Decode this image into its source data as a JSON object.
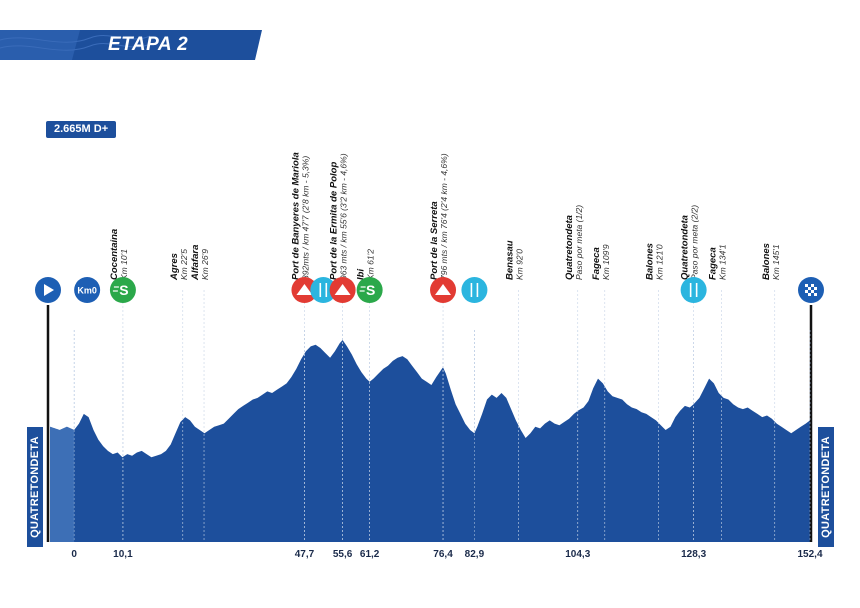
{
  "stage": {
    "title": "ETAPA 2",
    "elevation_gain": "2.665M D+"
  },
  "start_town": "QUATRETONDETA",
  "finish_town": "QUATRETONDETA",
  "colors": {
    "profile_fill": "#1d4f9c",
    "start_block": "#3d6fb6",
    "climb_red": "#e23b33",
    "sprint_green": "#2ba84a",
    "feed_cyan": "#2bb5df",
    "marker_blue": "#1d5fb4"
  },
  "chart_data": {
    "type": "area",
    "title": "ETAPA 2",
    "xlabel": "",
    "ylabel": "",
    "x_unit": "km",
    "xlim": [
      -5,
      152.4
    ],
    "grid": false,
    "ticks": [
      "0",
      "10,1",
      "47,7",
      "55,6",
      "61,2",
      "76,4",
      "82,9",
      "104,3",
      "128,3",
      "152,4"
    ],
    "tick_values": [
      0,
      10.1,
      47.7,
      55.6,
      61.2,
      76.4,
      82.9,
      104.3,
      128.3,
      152.4
    ],
    "profile_relative": [
      [
        -5,
        0.62
      ],
      [
        -3,
        0.6
      ],
      [
        -1.5,
        0.62
      ],
      [
        0,
        0.6
      ],
      [
        1,
        0.64
      ],
      [
        2,
        0.7
      ],
      [
        3,
        0.68
      ],
      [
        4,
        0.6
      ],
      [
        5,
        0.54
      ],
      [
        6,
        0.5
      ],
      [
        7,
        0.47
      ],
      [
        8,
        0.45
      ],
      [
        9,
        0.46
      ],
      [
        10,
        0.43
      ],
      [
        11,
        0.45
      ],
      [
        12,
        0.44
      ],
      [
        13,
        0.46
      ],
      [
        14,
        0.47
      ],
      [
        15,
        0.45
      ],
      [
        16,
        0.43
      ],
      [
        17,
        0.44
      ],
      [
        18,
        0.45
      ],
      [
        19,
        0.47
      ],
      [
        20,
        0.51
      ],
      [
        21,
        0.58
      ],
      [
        22,
        0.65
      ],
      [
        23,
        0.68
      ],
      [
        24,
        0.66
      ],
      [
        25,
        0.62
      ],
      [
        26,
        0.6
      ],
      [
        27,
        0.58
      ],
      [
        28,
        0.6
      ],
      [
        29,
        0.62
      ],
      [
        30,
        0.63
      ],
      [
        31,
        0.64
      ],
      [
        32,
        0.67
      ],
      [
        33,
        0.7
      ],
      [
        34,
        0.73
      ],
      [
        35,
        0.75
      ],
      [
        36,
        0.77
      ],
      [
        37,
        0.79
      ],
      [
        38,
        0.8
      ],
      [
        39,
        0.82
      ],
      [
        40,
        0.84
      ],
      [
        41,
        0.83
      ],
      [
        42,
        0.85
      ],
      [
        43,
        0.87
      ],
      [
        44,
        0.89
      ],
      [
        45,
        0.93
      ],
      [
        46,
        0.98
      ],
      [
        47,
        1.04
      ],
      [
        48,
        1.09
      ],
      [
        49,
        1.12
      ],
      [
        50,
        1.13
      ],
      [
        51,
        1.11
      ],
      [
        52,
        1.08
      ],
      [
        53,
        1.05
      ],
      [
        54,
        1.09
      ],
      [
        55,
        1.14
      ],
      [
        55.6,
        1.16
      ],
      [
        56.5,
        1.12
      ],
      [
        57.5,
        1.07
      ],
      [
        58.5,
        1.01
      ],
      [
        59.5,
        0.96
      ],
      [
        60.5,
        0.92
      ],
      [
        61.2,
        0.9
      ],
      [
        62,
        0.92
      ],
      [
        63,
        0.95
      ],
      [
        64,
        0.98
      ],
      [
        65,
        1.0
      ],
      [
        66,
        1.03
      ],
      [
        67,
        1.05
      ],
      [
        68,
        1.06
      ],
      [
        69,
        1.04
      ],
      [
        70,
        1.0
      ],
      [
        71,
        0.96
      ],
      [
        72,
        0.92
      ],
      [
        73,
        0.9
      ],
      [
        74,
        0.88
      ],
      [
        75,
        0.93
      ],
      [
        76.4,
        0.99
      ],
      [
        77,
        0.95
      ],
      [
        78,
        0.85
      ],
      [
        79,
        0.76
      ],
      [
        80,
        0.7
      ],
      [
        81,
        0.64
      ],
      [
        82,
        0.6
      ],
      [
        82.9,
        0.58
      ],
      [
        83.5,
        0.62
      ],
      [
        84.5,
        0.7
      ],
      [
        85.5,
        0.79
      ],
      [
        86.5,
        0.82
      ],
      [
        87.5,
        0.8
      ],
      [
        88.5,
        0.83
      ],
      [
        89.5,
        0.8
      ],
      [
        90.5,
        0.73
      ],
      [
        91.5,
        0.66
      ],
      [
        92.5,
        0.6
      ],
      [
        93.5,
        0.55
      ],
      [
        94.5,
        0.58
      ],
      [
        95.5,
        0.62
      ],
      [
        96.5,
        0.61
      ],
      [
        97.5,
        0.64
      ],
      [
        98.5,
        0.66
      ],
      [
        99.5,
        0.64
      ],
      [
        100.5,
        0.63
      ],
      [
        101.5,
        0.65
      ],
      [
        102.5,
        0.67
      ],
      [
        103.5,
        0.7
      ],
      [
        104.3,
        0.72
      ],
      [
        105.5,
        0.74
      ],
      [
        106.5,
        0.78
      ],
      [
        107.5,
        0.86
      ],
      [
        108.5,
        0.92
      ],
      [
        109.5,
        0.89
      ],
      [
        110.5,
        0.84
      ],
      [
        111.5,
        0.81
      ],
      [
        112.5,
        0.8
      ],
      [
        113.5,
        0.79
      ],
      [
        114.5,
        0.76
      ],
      [
        115.5,
        0.74
      ],
      [
        116.5,
        0.73
      ],
      [
        117.5,
        0.71
      ],
      [
        118.5,
        0.7
      ],
      [
        119.5,
        0.68
      ],
      [
        120.5,
        0.66
      ],
      [
        121.5,
        0.63
      ],
      [
        122.5,
        0.6
      ],
      [
        123.5,
        0.62
      ],
      [
        124.5,
        0.68
      ],
      [
        125.5,
        0.72
      ],
      [
        126.5,
        0.75
      ],
      [
        127.5,
        0.74
      ],
      [
        128.3,
        0.76
      ],
      [
        129.5,
        0.8
      ],
      [
        130.5,
        0.86
      ],
      [
        131.5,
        0.92
      ],
      [
        132.5,
        0.89
      ],
      [
        133.5,
        0.83
      ],
      [
        134.5,
        0.8
      ],
      [
        135.5,
        0.79
      ],
      [
        136.5,
        0.76
      ],
      [
        137.5,
        0.74
      ],
      [
        138.5,
        0.73
      ],
      [
        139.5,
        0.74
      ],
      [
        140.5,
        0.72
      ],
      [
        141.5,
        0.7
      ],
      [
        142.5,
        0.68
      ],
      [
        143.5,
        0.69
      ],
      [
        144.5,
        0.67
      ],
      [
        145.5,
        0.64
      ],
      [
        146.5,
        0.62
      ],
      [
        147.5,
        0.6
      ],
      [
        148.5,
        0.58
      ],
      [
        149.5,
        0.6
      ],
      [
        150.5,
        0.62
      ],
      [
        151.5,
        0.64
      ],
      [
        152.4,
        0.66
      ]
    ],
    "annotations": [
      {
        "name": "Cocentaina",
        "km_text": "Km 10'1",
        "km": 10.1
      },
      {
        "name": "Agres",
        "km_text": "Km 22'5",
        "km": 22.5
      },
      {
        "name": "Alfafara",
        "km_text": "Km 26'9",
        "km": 26.9
      },
      {
        "name": "Port de Banyeres de Mariola",
        "km_text": "892mts / km 47'7 (2'8 km - 5,3%)",
        "km": 47.7
      },
      {
        "name": "Port de la Ermita de Polop",
        "km_text": "963 mts / km 55'6 (3'2 km - 4,6%)",
        "km": 55.6
      },
      {
        "name": "Ibi",
        "km_text": "Km 61'2",
        "km": 61.2
      },
      {
        "name": "Port de la Serreta",
        "km_text": "796 mts / km 76'4 (2'4 km - 4,6%)",
        "km": 76.4
      },
      {
        "name": "Benasau",
        "km_text": "Km 92'0",
        "km": 92.0
      },
      {
        "name": "Quatretondeta",
        "km_text": "Paso por meta (1/2)",
        "km": 104.3
      },
      {
        "name": "Fageca",
        "km_text": "Km 109'9",
        "km": 109.9
      },
      {
        "name": "Balones",
        "km_text": "Km 121'0",
        "km": 121.0
      },
      {
        "name": "Quatretondeta",
        "km_text": "Paso por meta (2/2)",
        "km": 128.3
      },
      {
        "name": "Fageca",
        "km_text": "Km 134'1",
        "km": 134.1
      },
      {
        "name": "Balones",
        "km_text": "Km 145'1",
        "km": 145.1
      }
    ],
    "markers": [
      {
        "type": "start-flag",
        "km": -5
      },
      {
        "type": "km0",
        "km": 0,
        "label": "Km0"
      },
      {
        "type": "sprint",
        "km": 10.1,
        "label": "S"
      },
      {
        "type": "climb",
        "km": 47.7
      },
      {
        "type": "feed",
        "km": 51.6
      },
      {
        "type": "climb",
        "km": 55.6
      },
      {
        "type": "sprint",
        "km": 61.2,
        "label": "S"
      },
      {
        "type": "climb",
        "km": 76.4
      },
      {
        "type": "feed",
        "km": 82.9
      },
      {
        "type": "feed",
        "km": 128.3
      },
      {
        "type": "finish-flag",
        "km": 152.4
      }
    ]
  }
}
